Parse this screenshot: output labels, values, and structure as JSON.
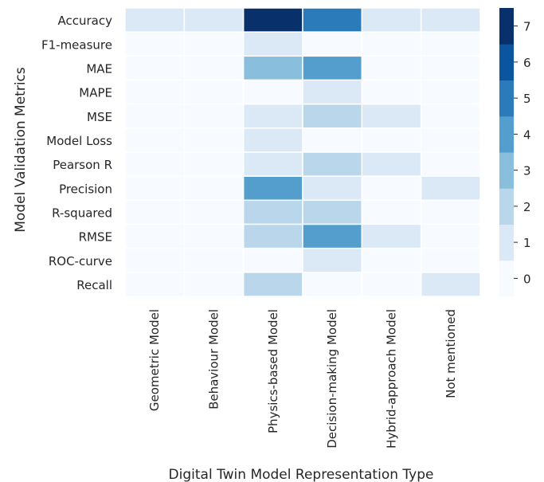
{
  "chart_data": {
    "type": "heatmap",
    "title": "",
    "xlabel": "Digital Twin Model Representation Type",
    "ylabel": "Model Validation Metrics",
    "x_categories": [
      "Geometric Model",
      "Behaviour Model",
      "Physics-based Model",
      "Decision-making Model",
      "Hybrid-approach  Model",
      "Not mentioned"
    ],
    "y_categories": [
      "Accuracy",
      "F1-measure",
      "MAE",
      "MAPE",
      "MSE",
      "Model Loss",
      "Pearson R",
      "Precision",
      "R-squared",
      "RMSE",
      "ROC-curve",
      "Recall"
    ],
    "values": [
      [
        1,
        1,
        7,
        5,
        1,
        1
      ],
      [
        0,
        0,
        1,
        0,
        0,
        0
      ],
      [
        0,
        0,
        3,
        4,
        0,
        0
      ],
      [
        0,
        0,
        0,
        1,
        0,
        0
      ],
      [
        0,
        0,
        1,
        2,
        1,
        0
      ],
      [
        0,
        0,
        1,
        0,
        0,
        0
      ],
      [
        0,
        0,
        1,
        2,
        1,
        0
      ],
      [
        0,
        0,
        4,
        1,
        0,
        1
      ],
      [
        0,
        0,
        2,
        2,
        0,
        0
      ],
      [
        0,
        0,
        2,
        4,
        1,
        0
      ],
      [
        0,
        0,
        0,
        1,
        0,
        0
      ],
      [
        0,
        0,
        2,
        0,
        0,
        1
      ]
    ],
    "colorbar": {
      "range": [
        -0.5,
        7.5
      ],
      "ticks": [
        "0",
        "1",
        "2",
        "3",
        "4",
        "5",
        "6",
        "7"
      ],
      "colors": [
        "#f7fbff",
        "#dbe9f6",
        "#bad6eb",
        "#89bedc",
        "#539ecd",
        "#2b7bba",
        "#0b559f",
        "#08306b"
      ]
    },
    "grid": false,
    "gridline_color": "#ffffff"
  }
}
